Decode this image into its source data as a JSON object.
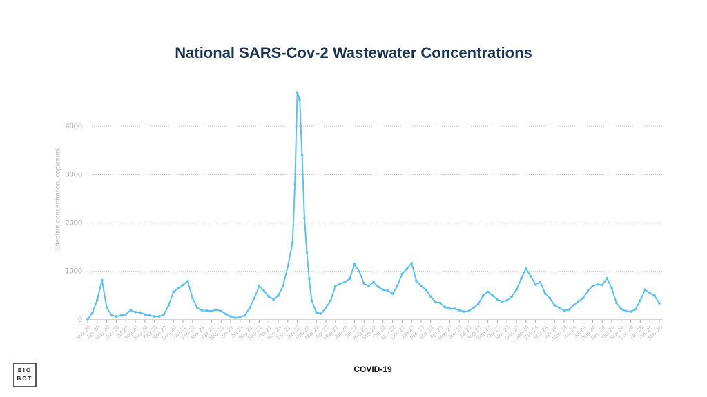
{
  "chart_data": {
    "type": "line",
    "title": "National SARS-Cov-2 Wastewater Concentrations",
    "ylabel": "Effective concentration, copies/mL",
    "xlabel": "COVID-19",
    "logo": [
      "BIO",
      "BOT"
    ],
    "grid": true,
    "xlim": [
      0,
      60
    ],
    "ylim": [
      0,
      4800
    ],
    "yticks": [
      0,
      1000,
      2000,
      3000,
      4000
    ],
    "xticks": [
      {
        "value": 0,
        "label": "Mar 20"
      },
      {
        "value": 1,
        "label": "Apr 20"
      },
      {
        "value": 2,
        "label": "May 20"
      },
      {
        "value": 3,
        "label": "Jun 20"
      },
      {
        "value": 4,
        "label": "Jul 20"
      },
      {
        "value": 5,
        "label": "Aug 20"
      },
      {
        "value": 6,
        "label": "Sep 20"
      },
      {
        "value": 7,
        "label": "Oct 20"
      },
      {
        "value": 8,
        "label": "Nov 20"
      },
      {
        "value": 9,
        "label": "Dec 20"
      },
      {
        "value": 10,
        "label": "Jan 21"
      },
      {
        "value": 11,
        "label": "Feb 21"
      },
      {
        "value": 12,
        "label": "Mar 21"
      },
      {
        "value": 13,
        "label": "Apr 21"
      },
      {
        "value": 14,
        "label": "May 21"
      },
      {
        "value": 15,
        "label": "Jun 21"
      },
      {
        "value": 16,
        "label": "Jul 21"
      },
      {
        "value": 17,
        "label": "Aug 21"
      },
      {
        "value": 18,
        "label": "Sep 21"
      },
      {
        "value": 19,
        "label": "Oct 21"
      },
      {
        "value": 20,
        "label": "Nov 21"
      },
      {
        "value": 21,
        "label": "Dec 21"
      },
      {
        "value": 22,
        "label": "Jan 22"
      },
      {
        "value": 23,
        "label": "Feb 22"
      },
      {
        "value": 24,
        "label": "Mar 22"
      },
      {
        "value": 25,
        "label": "Apr 22"
      },
      {
        "value": 26,
        "label": "May 22"
      },
      {
        "value": 27,
        "label": "Jun 22"
      },
      {
        "value": 28,
        "label": "Jul 22"
      },
      {
        "value": 29,
        "label": "Aug 22"
      },
      {
        "value": 30,
        "label": "Sep 22"
      },
      {
        "value": 31,
        "label": "Oct 22"
      },
      {
        "value": 32,
        "label": "Nov 22"
      },
      {
        "value": 33,
        "label": "Dec 22"
      },
      {
        "value": 34,
        "label": "Jan 23"
      },
      {
        "value": 35,
        "label": "Feb 23"
      },
      {
        "value": 36,
        "label": "Mar 23"
      },
      {
        "value": 37,
        "label": "Apr 23"
      },
      {
        "value": 38,
        "label": "May 23"
      },
      {
        "value": 39,
        "label": "Jun 23"
      },
      {
        "value": 40,
        "label": "Jul 23"
      },
      {
        "value": 41,
        "label": "Aug 23"
      },
      {
        "value": 42,
        "label": "Sep 23"
      },
      {
        "value": 43,
        "label": "Oct 23"
      },
      {
        "value": 44,
        "label": "Nov 23"
      },
      {
        "value": 45,
        "label": "Dec 23"
      },
      {
        "value": 46,
        "label": "Jan 24"
      },
      {
        "value": 47,
        "label": "Feb 24"
      },
      {
        "value": 48,
        "label": "Mar 24"
      },
      {
        "value": 49,
        "label": "Apr 24"
      },
      {
        "value": 50,
        "label": "May 24"
      },
      {
        "value": 51,
        "label": "Jun 24"
      },
      {
        "value": 52,
        "label": "Jul 24"
      },
      {
        "value": 53,
        "label": "Aug 24"
      },
      {
        "value": 54,
        "label": "Sep 24"
      },
      {
        "value": 55,
        "label": "Oct 24"
      },
      {
        "value": 56,
        "label": "Nov 24"
      },
      {
        "value": 57,
        "label": "Dec 24"
      },
      {
        "value": 58,
        "label": "Jan 25"
      },
      {
        "value": 59,
        "label": "Feb 25"
      },
      {
        "value": 60,
        "label": "Mar 25"
      }
    ],
    "x": [
      0,
      0.5,
      1,
      1.5,
      2,
      2.5,
      3,
      3.5,
      4,
      4.5,
      5,
      5.5,
      6,
      6.5,
      7,
      7.5,
      8,
      8.5,
      9,
      9.5,
      10,
      10.5,
      11,
      11.5,
      12,
      12.5,
      13,
      13.5,
      14,
      14.5,
      15,
      15.5,
      16,
      16.5,
      17,
      17.5,
      18,
      18.5,
      19,
      19.5,
      20,
      20.5,
      21,
      21.5,
      21.75,
      22,
      22.25,
      22.5,
      22.75,
      23,
      23.25,
      23.5,
      24,
      24.5,
      25,
      25.5,
      26,
      26.5,
      27,
      27.5,
      28,
      28.5,
      29,
      29.5,
      30,
      30.5,
      31,
      31.5,
      32,
      32.5,
      33,
      33.5,
      34,
      34.5,
      35,
      35.5,
      36,
      36.5,
      37,
      37.5,
      38,
      38.5,
      39,
      39.5,
      40,
      40.5,
      41,
      41.5,
      42,
      42.5,
      43,
      43.5,
      44,
      44.5,
      45,
      45.5,
      46,
      46.5,
      47,
      47.5,
      48,
      48.5,
      49,
      49.5,
      50,
      50.5,
      51,
      51.5,
      52,
      52.5,
      53,
      53.5,
      54,
      54.5,
      55,
      55.5,
      56,
      56.5,
      57,
      57.5,
      58,
      58.5,
      59,
      59.5,
      60
    ],
    "series": [
      {
        "color": "#5bc0f0",
        "values": [
          10,
          150,
          410,
          820,
          250,
          100,
          70,
          90,
          110,
          200,
          160,
          150,
          110,
          90,
          70,
          70,
          110,
          300,
          580,
          650,
          720,
          800,
          450,
          250,
          190,
          190,
          180,
          210,
          180,
          120,
          70,
          40,
          60,
          90,
          250,
          450,
          700,
          600,
          480,
          420,
          500,
          700,
          1100,
          1600,
          2800,
          4700,
          4550,
          3400,
          2100,
          1400,
          850,
          400,
          150,
          130,
          250,
          400,
          700,
          750,
          780,
          850,
          1150,
          1000,
          750,
          700,
          780,
          680,
          620,
          600,
          540,
          700,
          950,
          1050,
          1170,
          800,
          700,
          620,
          480,
          370,
          350,
          260,
          230,
          230,
          200,
          170,
          180,
          250,
          330,
          500,
          580,
          500,
          420,
          380,
          400,
          480,
          620,
          850,
          1060,
          900,
          730,
          780,
          550,
          450,
          300,
          250,
          190,
          210,
          300,
          380,
          450,
          600,
          700,
          730,
          720,
          860,
          650,
          350,
          220,
          180,
          170,
          220,
          400,
          620,
          550,
          500,
          340
        ]
      }
    ]
  }
}
